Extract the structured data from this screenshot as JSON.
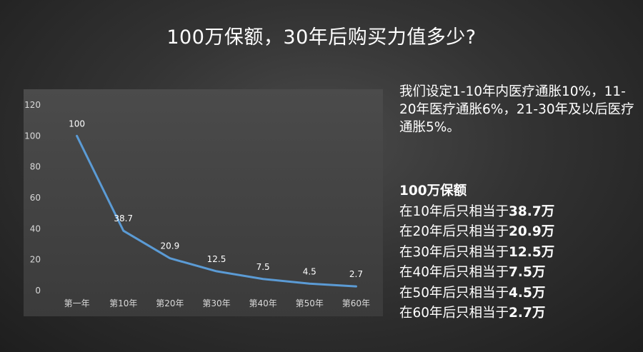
{
  "slide": {
    "title": "100万保额，30年后购买力值多少?"
  },
  "notes": {
    "text": "我们设定1-10年内医疗通胀10%，11-20年医疗通胀6%，21-30年及以后医疗通胀5%。"
  },
  "summary": {
    "heading": "100万保额",
    "rows": [
      {
        "prefix": "在10年后只相当于",
        "value": "38.7万"
      },
      {
        "prefix": "在20年后只相当于",
        "value": "20.9万"
      },
      {
        "prefix": "在30年后只相当于",
        "value": "12.5万"
      },
      {
        "prefix": "在40年后只相当于",
        "value": "7.5万"
      },
      {
        "prefix": "在50年后只相当于",
        "value": "4.5万"
      },
      {
        "prefix": "在60年后只相当于",
        "value": "2.7万"
      }
    ]
  },
  "chart_data": {
    "type": "line",
    "categories": [
      "第一年",
      "第10年",
      "第20年",
      "第30年",
      "第40年",
      "第50年",
      "第60年"
    ],
    "values": [
      100,
      38.7,
      20.9,
      12.5,
      7.5,
      4.5,
      2.7
    ],
    "data_labels": [
      "100",
      "38.7",
      "20.9",
      "12.5",
      "7.5",
      "4.5",
      "2.7"
    ],
    "ylim": [
      0,
      120
    ],
    "yticks": [
      0,
      20,
      40,
      60,
      80,
      100,
      120
    ],
    "grid": false,
    "legend": "none",
    "line_color": "#5b9bd5",
    "label_color": "#ffffff",
    "tick_color": "#d9d9d9"
  }
}
